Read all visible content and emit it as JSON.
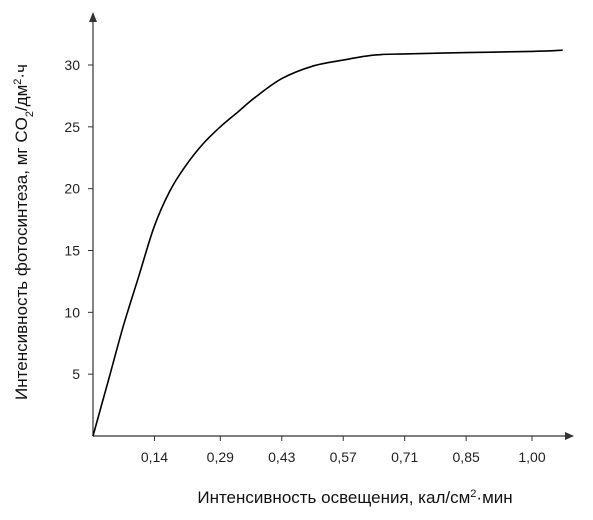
{
  "chart_data": {
    "type": "line",
    "x_label": {
      "text_main": "Интенсивность освещения, кал/см",
      "sup": "2",
      "text_tail": "·мин"
    },
    "y_label": {
      "text_main": "Интенсивность фотосинтеза, мг CO",
      "sub": "2",
      "text_mid": "/дм",
      "sup": "2",
      "text_tail": "·ч"
    },
    "x_ticks": [
      "0,14",
      "0,29",
      "0,43",
      "0,57",
      "0,71",
      "0,85",
      "1,00"
    ],
    "x_tick_values": [
      0.14,
      0.29,
      0.43,
      0.57,
      0.71,
      0.85,
      1.0
    ],
    "y_ticks": [
      "5",
      "10",
      "15",
      "20",
      "25",
      "30"
    ],
    "y_tick_values": [
      5,
      10,
      15,
      20,
      25,
      30
    ],
    "xlim": [
      0,
      1.15
    ],
    "ylim": [
      0,
      32
    ],
    "grid": false,
    "series": [
      {
        "points": [
          [
            0.0,
            0.0
          ],
          [
            0.035,
            4.5
          ],
          [
            0.07,
            9.0
          ],
          [
            0.105,
            13.0
          ],
          [
            0.14,
            17.0
          ],
          [
            0.175,
            19.8
          ],
          [
            0.21,
            21.8
          ],
          [
            0.25,
            23.6
          ],
          [
            0.29,
            25.0
          ],
          [
            0.33,
            26.2
          ],
          [
            0.37,
            27.4
          ],
          [
            0.43,
            28.9
          ],
          [
            0.5,
            29.9
          ],
          [
            0.57,
            30.4
          ],
          [
            0.64,
            30.8
          ],
          [
            0.71,
            30.9
          ],
          [
            0.85,
            31.0
          ],
          [
            1.0,
            31.1
          ],
          [
            1.07,
            31.2
          ]
        ]
      }
    ],
    "colors": {
      "curve": "#000000",
      "axis": "#333333"
    }
  }
}
